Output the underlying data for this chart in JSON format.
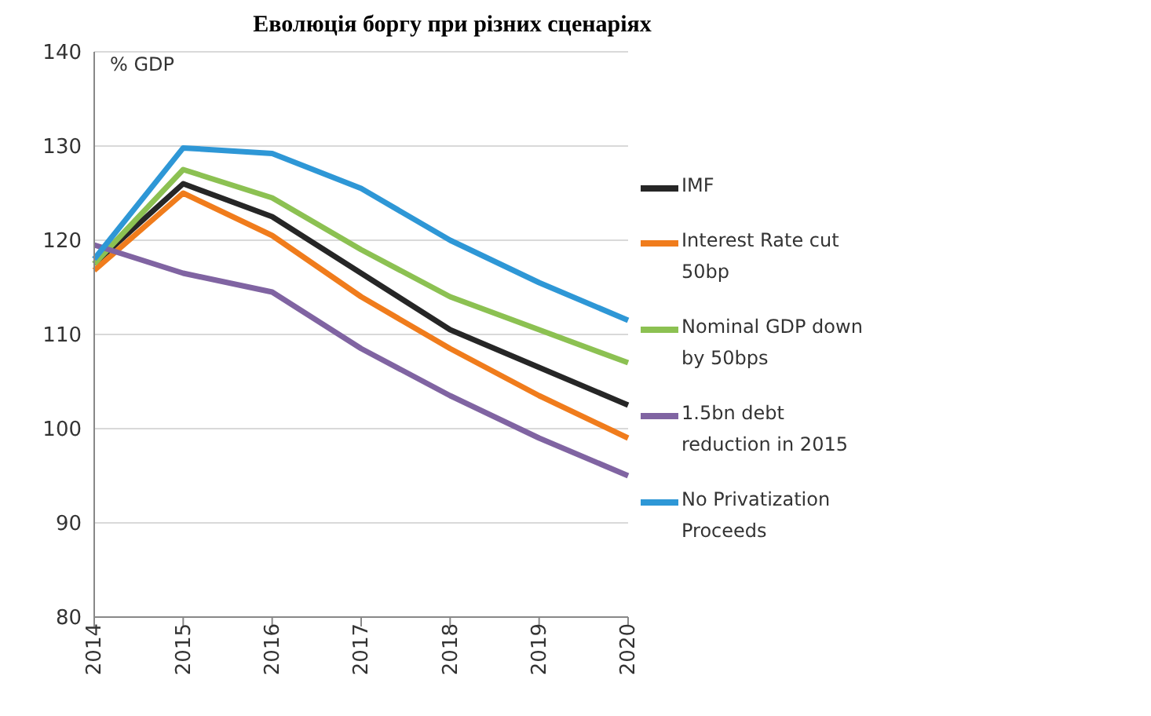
{
  "chart_data": {
    "type": "line",
    "title": "Еволюція боргу при різних сценаріях",
    "ylabel": "% GDP",
    "categories": [
      "2014",
      "2015",
      "2016",
      "2017",
      "2018",
      "2019",
      "2020"
    ],
    "series": [
      {
        "name": "IMF",
        "color": "#262626",
        "values": [
          117.5,
          126,
          122.5,
          116.5,
          110.5,
          106.5,
          102.5
        ]
      },
      {
        "name": "Interest Rate cut 50bp",
        "color": "#f07c1c",
        "values": [
          116.8,
          125,
          120.5,
          114,
          108.5,
          103.5,
          99
        ]
      },
      {
        "name": "Nominal GDP down by 50bps",
        "color": "#8cc152",
        "values": [
          117.5,
          127.5,
          124.5,
          119,
          114,
          110.5,
          107
        ]
      },
      {
        "name": "1.5bn debt reduction in 2015",
        "color": "#8064a2",
        "values": [
          119.5,
          116.5,
          114.5,
          108.5,
          103.5,
          99,
          95
        ]
      },
      {
        "name": "No Privatization Proceeds",
        "color": "#2e97d6",
        "values": [
          118,
          129.8,
          129.2,
          125.5,
          120,
          115.5,
          111.5
        ]
      }
    ],
    "ylim": [
      80,
      140
    ],
    "yticks": [
      80,
      90,
      100,
      110,
      120,
      130,
      140
    ],
    "grid": "y",
    "legend": "right",
    "marker": "none",
    "line_style": "solid"
  }
}
